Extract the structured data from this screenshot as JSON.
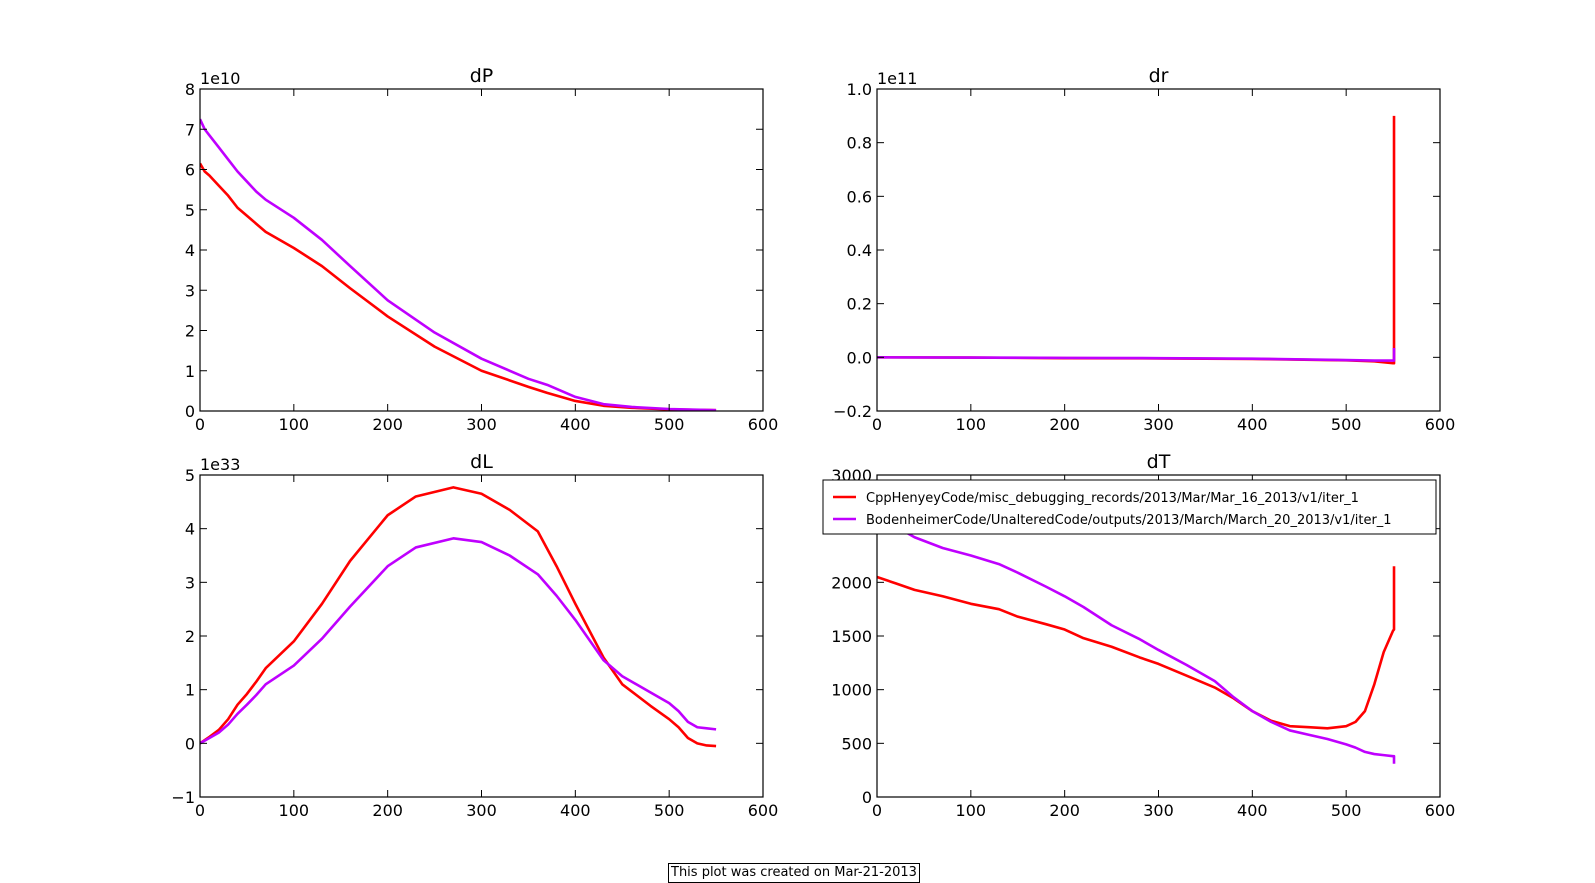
{
  "figure": {
    "footer_text": "This plot was created on Mar-21-2013",
    "colors": {
      "series_1": "#ff0000",
      "series_2": "#bf00ff",
      "axes": "#000000",
      "background": "#ffffff"
    }
  },
  "legend": {
    "subplot": "dT",
    "placement": "upper-right",
    "entries": [
      "CppHenyeyCode/misc_debugging_records/2013/Mar/Mar_16_2013/v1/iter_1",
      "BodenheimerCode/UnalteredCode/outputs/2013/March/March_20_2013/v1/iter_1"
    ]
  },
  "chart_data": [
    {
      "type": "line",
      "title": "dP",
      "offset_label": "1e10",
      "xlim": [
        0,
        600
      ],
      "ylim": [
        0,
        8
      ],
      "xticks": [
        "0",
        "100",
        "200",
        "300",
        "400",
        "500",
        "600"
      ],
      "yticks": [
        "0",
        "1",
        "2",
        "3",
        "4",
        "5",
        "6",
        "7",
        "8"
      ],
      "series": [
        {
          "name": "CppHenyeyCode/misc_debugging_records/2013/Mar/Mar_16_2013/v1/iter_1",
          "x": [
            0,
            5,
            10,
            20,
            30,
            40,
            50,
            60,
            70,
            100,
            130,
            160,
            200,
            250,
            300,
            350,
            370,
            400,
            430,
            460,
            500,
            550
          ],
          "y": [
            6.15,
            5.95,
            5.85,
            5.6,
            5.35,
            5.05,
            4.85,
            4.65,
            4.45,
            4.05,
            3.6,
            3.05,
            2.35,
            1.6,
            1.0,
            0.6,
            0.45,
            0.25,
            0.13,
            0.08,
            0.04,
            0.02
          ]
        },
        {
          "name": "BodenheimerCode/UnalteredCode/outputs/2013/March/March_20_2013/v1/iter_1",
          "x": [
            0,
            5,
            10,
            20,
            30,
            40,
            50,
            60,
            70,
            100,
            130,
            160,
            200,
            250,
            300,
            350,
            370,
            400,
            430,
            460,
            500,
            550
          ],
          "y": [
            7.25,
            7.0,
            6.85,
            6.55,
            6.25,
            5.95,
            5.7,
            5.45,
            5.25,
            4.8,
            4.25,
            3.6,
            2.75,
            1.95,
            1.3,
            0.8,
            0.65,
            0.35,
            0.17,
            0.1,
            0.05,
            0.02
          ]
        }
      ]
    },
    {
      "type": "line",
      "title": "dr",
      "offset_label": "1e11",
      "xlim": [
        0,
        600
      ],
      "ylim": [
        -0.2,
        1.0
      ],
      "xticks": [
        "0",
        "100",
        "200",
        "300",
        "400",
        "500",
        "600"
      ],
      "yticks": [
        "−0.2",
        "0.0",
        "0.2",
        "0.4",
        "0.6",
        "0.8",
        "1.0"
      ],
      "series": [
        {
          "name": "CppHenyeyCode/misc_debugging_records/2013/Mar/Mar_16_2013/v1/iter_1",
          "x": [
            0,
            100,
            200,
            300,
            400,
            500,
            530,
            550,
            551,
            551
          ],
          "y": [
            0.0,
            -0.001,
            -0.003,
            -0.004,
            -0.006,
            -0.011,
            -0.015,
            -0.022,
            -0.022,
            0.9
          ]
        },
        {
          "name": "BodenheimerCode/UnalteredCode/outputs/2013/March/March_20_2013/v1/iter_1",
          "x": [
            0,
            100,
            200,
            300,
            400,
            500,
            530,
            550,
            551,
            551
          ],
          "y": [
            0.0,
            -0.001,
            -0.002,
            -0.003,
            -0.005,
            -0.01,
            -0.012,
            -0.012,
            -0.012,
            0.035
          ]
        }
      ]
    },
    {
      "type": "line",
      "title": "dL",
      "offset_label": "1e33",
      "xlim": [
        0,
        600
      ],
      "ylim": [
        -1,
        5
      ],
      "xticks": [
        "0",
        "100",
        "200",
        "300",
        "400",
        "500",
        "600"
      ],
      "yticks": [
        "−1",
        "0",
        "1",
        "2",
        "3",
        "4",
        "5"
      ],
      "series": [
        {
          "name": "CppHenyeyCode/misc_debugging_records/2013/Mar/Mar_16_2013/v1/iter_1",
          "x": [
            0,
            10,
            20,
            30,
            40,
            50,
            60,
            70,
            100,
            130,
            160,
            200,
            230,
            270,
            300,
            330,
            360,
            380,
            400,
            430,
            450,
            480,
            500,
            510,
            520,
            530,
            540,
            550
          ],
          "y": [
            0.0,
            0.12,
            0.25,
            0.45,
            0.72,
            0.92,
            1.15,
            1.4,
            1.9,
            2.6,
            3.4,
            4.25,
            4.6,
            4.77,
            4.65,
            4.35,
            3.95,
            3.3,
            2.6,
            1.6,
            1.1,
            0.7,
            0.45,
            0.3,
            0.1,
            0.0,
            -0.04,
            -0.05
          ]
        },
        {
          "name": "BodenheimerCode/UnalteredCode/outputs/2013/March/March_20_2013/v1/iter_1",
          "x": [
            0,
            10,
            20,
            30,
            40,
            50,
            60,
            70,
            100,
            130,
            160,
            200,
            230,
            270,
            300,
            330,
            360,
            380,
            400,
            430,
            450,
            480,
            500,
            510,
            520,
            530,
            540,
            550
          ],
          "y": [
            0.0,
            0.1,
            0.2,
            0.35,
            0.55,
            0.72,
            0.9,
            1.1,
            1.45,
            1.95,
            2.55,
            3.3,
            3.65,
            3.82,
            3.75,
            3.5,
            3.15,
            2.75,
            2.3,
            1.55,
            1.25,
            0.95,
            0.75,
            0.6,
            0.4,
            0.3,
            0.28,
            0.26
          ]
        }
      ]
    },
    {
      "type": "line",
      "title": "dT",
      "offset_label": "",
      "xlim": [
        0,
        600
      ],
      "ylim": [
        0,
        3000
      ],
      "xticks": [
        "0",
        "100",
        "200",
        "300",
        "400",
        "500",
        "600"
      ],
      "yticks": [
        "0",
        "500",
        "1000",
        "1500",
        "2000",
        "2500",
        "3000"
      ],
      "series": [
        {
          "name": "CppHenyeyCode/misc_debugging_records/2013/Mar/Mar_16_2013/v1/iter_1",
          "x": [
            0,
            20,
            40,
            70,
            100,
            130,
            150,
            180,
            200,
            220,
            250,
            280,
            300,
            330,
            360,
            380,
            400,
            420,
            440,
            460,
            480,
            500,
            510,
            520,
            530,
            540,
            550,
            551,
            551
          ],
          "y": [
            2050,
            1990,
            1930,
            1870,
            1800,
            1750,
            1680,
            1610,
            1560,
            1480,
            1400,
            1300,
            1240,
            1130,
            1020,
            920,
            800,
            710,
            660,
            650,
            640,
            660,
            700,
            800,
            1050,
            1350,
            1550,
            1560,
            2150
          ]
        },
        {
          "name": "BodenheimerCode/UnalteredCode/outputs/2013/March/March_20_2013/v1/iter_1",
          "x": [
            0,
            20,
            40,
            70,
            100,
            130,
            150,
            180,
            200,
            220,
            250,
            280,
            300,
            330,
            360,
            380,
            400,
            420,
            440,
            460,
            480,
            500,
            510,
            520,
            530,
            540,
            550,
            551,
            551
          ],
          "y": [
            2560,
            2520,
            2420,
            2320,
            2250,
            2170,
            2090,
            1960,
            1870,
            1770,
            1600,
            1470,
            1370,
            1230,
            1080,
            930,
            800,
            700,
            620,
            580,
            540,
            490,
            460,
            420,
            400,
            390,
            380,
            380,
            310
          ]
        }
      ]
    }
  ]
}
